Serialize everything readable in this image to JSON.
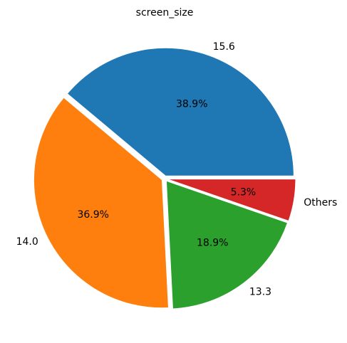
{
  "chart_data": {
    "type": "pie",
    "title": "screen_size",
    "categories": [
      "15.6",
      "14.0",
      "13.3",
      "Others"
    ],
    "values": [
      38.9,
      36.9,
      18.9,
      5.3
    ],
    "percent_labels": [
      "38.9%",
      "36.9%",
      "18.9%",
      "5.3%"
    ],
    "colors": [
      "#1f77b4",
      "#ff7f0e",
      "#2ca02c",
      "#d62728"
    ],
    "start_angle_deg": 0,
    "direction": "counterclockwise",
    "exploded": true,
    "legend": "none"
  }
}
